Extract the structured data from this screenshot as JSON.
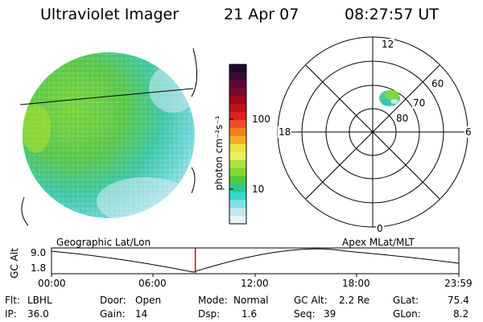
{
  "header": {
    "title": "Ultraviolet Imager",
    "date": "21 Apr 07",
    "time": "08:27:57 UT"
  },
  "colorbar": {
    "unit_label": "photon cm⁻²s⁻¹",
    "ticks": [
      "100",
      "10"
    ],
    "colors": [
      "#1a0a2e",
      "#3a0a3a",
      "#5a0a3a",
      "#7a0a2a",
      "#a00a1a",
      "#c0141a",
      "#e02020",
      "#f05020",
      "#f08020",
      "#f0b020",
      "#f0e040",
      "#e8f060",
      "#b0e040",
      "#80d838",
      "#50c840",
      "#30c890",
      "#30d8d0",
      "#80e0e8",
      "#c0e8f0",
      "#e8f0f4"
    ]
  },
  "polar_plot": {
    "mlt_labels": {
      "top": "12",
      "left": "18",
      "right": "6",
      "bottom": "0"
    },
    "lat_labels": [
      "60",
      "70",
      "80"
    ]
  },
  "timeline": {
    "y_axis_label": "GC Alt",
    "y_ticks": [
      "9.0",
      "1.8"
    ],
    "left_title": "Geographic Lat/Lon",
    "right_title": "Apex MLat/MLT",
    "x_ticks": [
      "00:00",
      "06:00",
      "12:00",
      "18:00",
      "23:59"
    ],
    "current_time_fraction": 0.353
  },
  "info": {
    "flt_label": "Flt:",
    "flt_value": "LBHL",
    "ip_label": "IP:",
    "ip_value": "36.0",
    "door_label": "Door:",
    "door_value": "Open",
    "gain_label": "Gain:",
    "gain_value": "14",
    "mode_label": "Mode:",
    "mode_value": "Normal",
    "dsp_label": "Dsp:",
    "dsp_value": "1.6",
    "gcalt_label": "GC Alt:",
    "gcalt_value": "2.2 Re",
    "seq_label": "Seq:",
    "seq_value": "39",
    "glat_label": "GLat:",
    "glat_value": "75.4",
    "glon_label": "GLon:",
    "glon_value": "8.2"
  }
}
